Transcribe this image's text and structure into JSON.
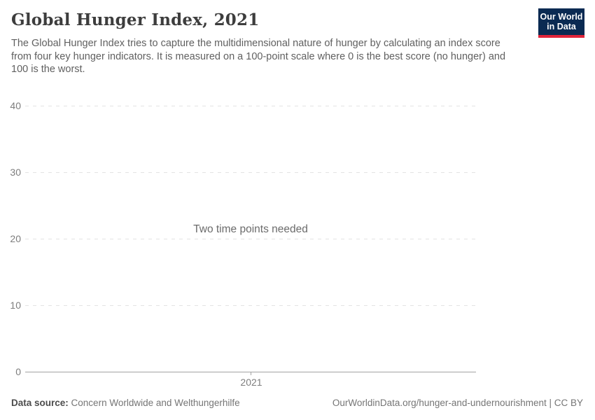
{
  "header": {
    "title": "Global Hunger Index, 2021",
    "subtitle": "The Global Hunger Index tries to capture the multidimensional nature of hunger by calculating an index score from four key hunger indicators. It is measured on a 100-point scale where 0 is the best score (no hunger) and 100 is the worst.",
    "logo": {
      "line1": "Our World",
      "line2": "in Data",
      "bg_color": "#0a2a52",
      "accent_color": "#e0243a"
    }
  },
  "chart_data": {
    "type": "line",
    "title": "Global Hunger Index, 2021",
    "series": [],
    "empty_message": "Two time points needed",
    "x_ticks": [
      "2021"
    ],
    "y_ticks": [
      "0",
      "10",
      "20",
      "30",
      "40"
    ],
    "ylim": [
      0,
      40
    ],
    "grid": true,
    "gridline_style": "dashed",
    "legend_position": "none"
  },
  "footer": {
    "datasource_label": "Data source:",
    "datasource_value": "Concern Worldwide and Welthungerhilfe",
    "attribution": "OurWorldinData.org/hunger-and-undernourishment | CC BY"
  }
}
